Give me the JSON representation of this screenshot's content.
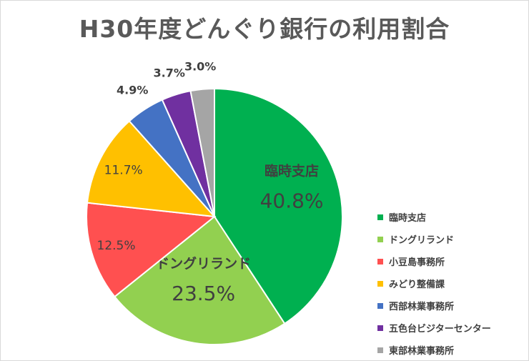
{
  "chart_data": {
    "type": "pie",
    "title": "H30年度どんぐり銀行の利用割合",
    "slices": [
      {
        "name": "臨時支店",
        "value": 40.8,
        "label": "40.8%",
        "color": "#00b050"
      },
      {
        "name": "ドングリランド",
        "value": 23.5,
        "label": "23.5%",
        "color": "#92d050"
      },
      {
        "name": "小豆島事務所",
        "value": 12.5,
        "label": "12.5%",
        "color": "#ff5050"
      },
      {
        "name": "みどり整備課",
        "value": 11.7,
        "label": "11.7%",
        "color": "#ffc000"
      },
      {
        "name": "西部林業事務所",
        "value": 4.9,
        "label": "4.9%",
        "color": "#4472c4"
      },
      {
        "name": "五色台ビジターセンター",
        "value": 3.7,
        "label": "3.7%",
        "color": "#7030a0"
      },
      {
        "name": "東部林業事務所",
        "value": 3.0,
        "label": "3.0%",
        "color": "#a5a5a5"
      }
    ],
    "legend_position": "right"
  }
}
